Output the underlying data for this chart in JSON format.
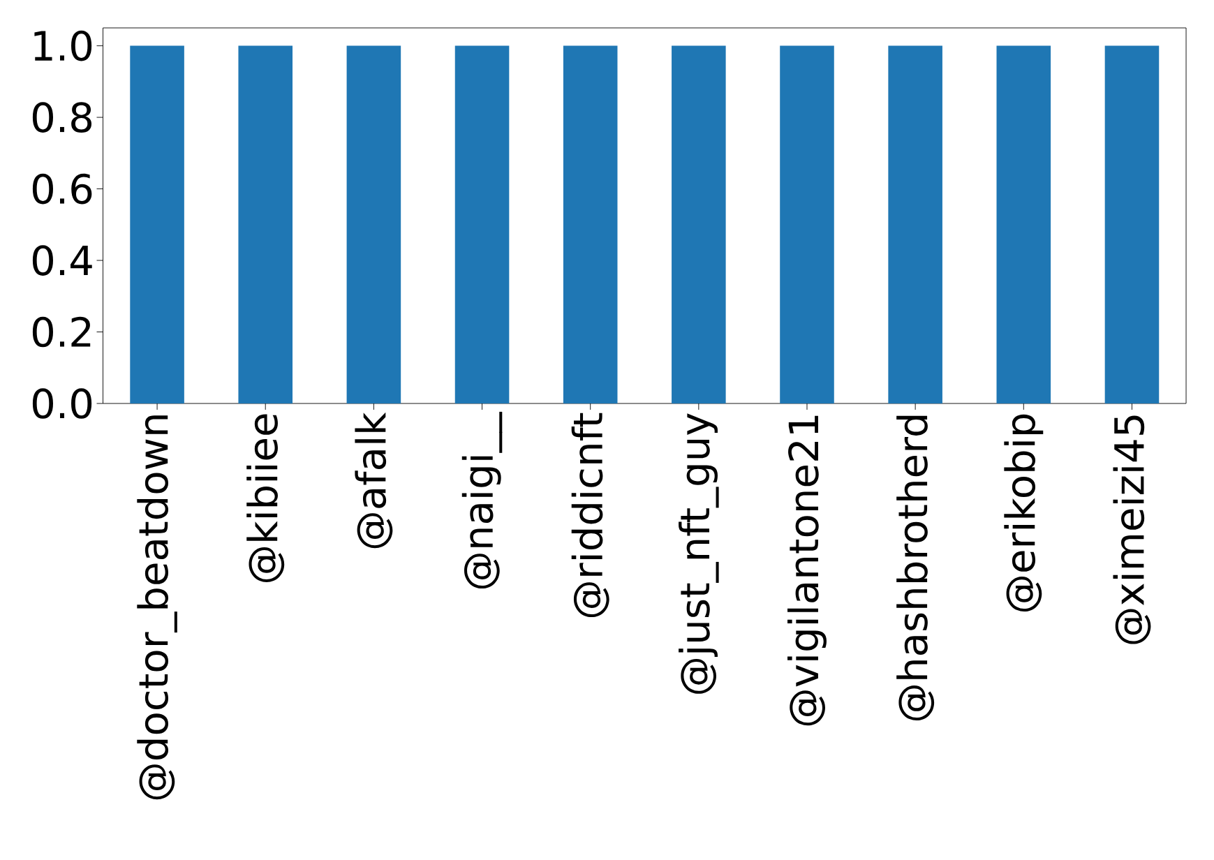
{
  "chart_data": {
    "type": "bar",
    "categories": [
      "@doctor_beatdown",
      "@kibiiee",
      "@afalk",
      "@naigi__",
      "@riddicnft",
      "@just_nft_guy",
      "@vigilantone21",
      "@hashbrotherd",
      "@erikobip",
      "@ximeizi45"
    ],
    "values": [
      1.0,
      1.0,
      1.0,
      1.0,
      1.0,
      1.0,
      1.0,
      1.0,
      1.0,
      1.0
    ],
    "color": "#1f77b4",
    "ylim": [
      0,
      1.05
    ],
    "yticks": [
      {
        "value": 0,
        "label": "0.0"
      },
      0.2,
      0.4,
      0.6,
      0.8,
      {
        "value": 1,
        "label": "1.0"
      }
    ],
    "grid": false
  }
}
